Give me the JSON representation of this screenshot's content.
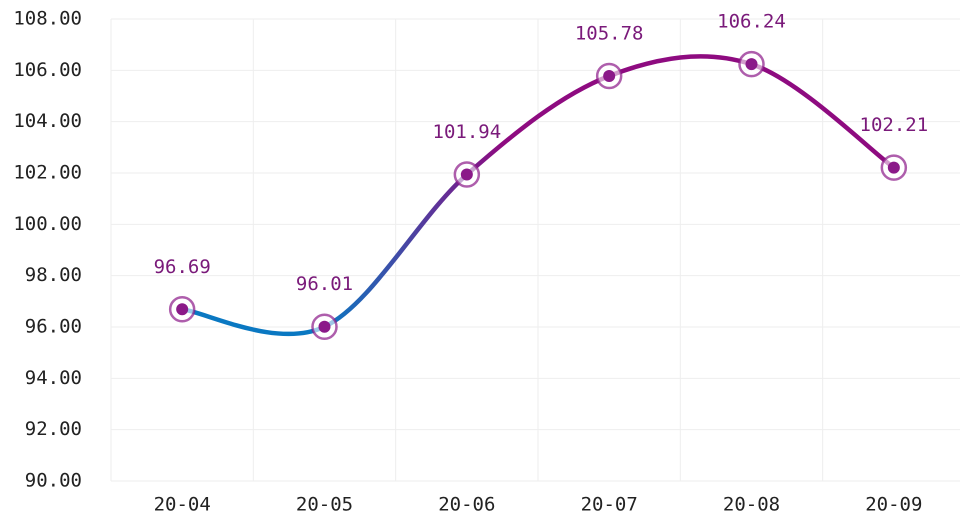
{
  "chart_data": {
    "type": "line",
    "smooth": true,
    "categories": [
      "20-04",
      "20-05",
      "20-06",
      "20-07",
      "20-08",
      "20-09"
    ],
    "values": [
      96.69,
      96.01,
      101.94,
      105.78,
      106.24,
      102.21
    ],
    "color": "#8b1a89",
    "line_gradient": [
      "#0a78c2",
      "#8e0b80"
    ],
    "ylim": [
      90,
      108
    ],
    "yticks": [
      {
        "value": 90,
        "label": "90.00"
      },
      {
        "value": 92,
        "label": "92.00"
      },
      {
        "value": 94,
        "label": "94.00"
      },
      {
        "value": 96,
        "label": "96.00"
      },
      {
        "value": 98,
        "label": "98.00"
      },
      {
        "value": 100,
        "label": "100.00"
      },
      {
        "value": 102,
        "label": "102.00"
      },
      {
        "value": 104,
        "label": "104.00"
      },
      {
        "value": 106,
        "label": "106.00"
      },
      {
        "value": 108,
        "label": "108.00"
      }
    ],
    "grid": true
  }
}
